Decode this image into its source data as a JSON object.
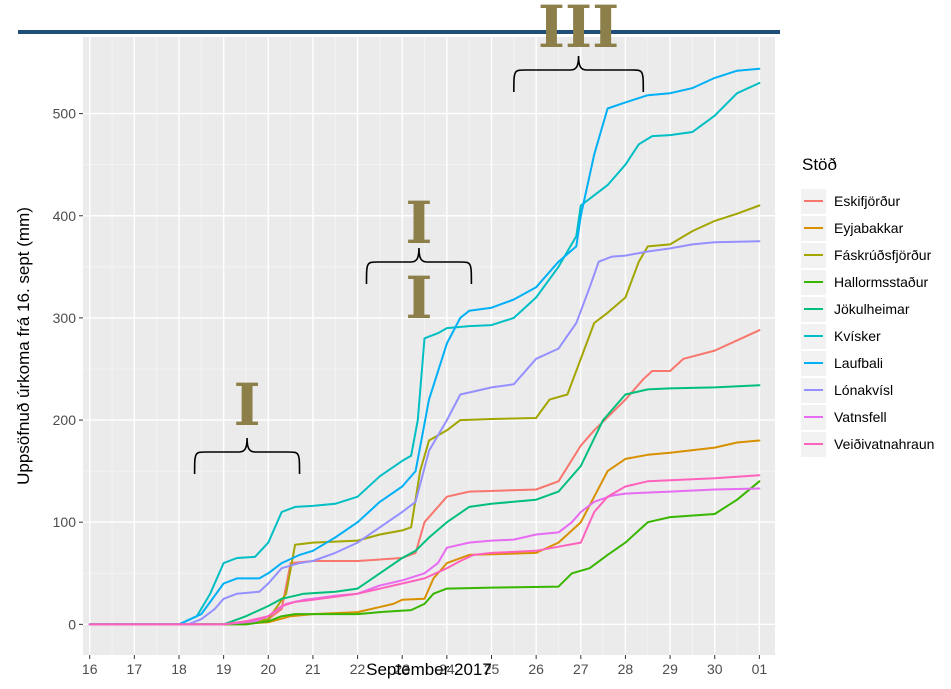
{
  "chart_data": {
    "type": "line",
    "xlabel": "September 2017",
    "ylabel": "Uppsöfnuð úrkoma frá 16. sept (mm)",
    "x_ticks": [
      "16",
      "17",
      "18",
      "19",
      "20",
      "21",
      "22",
      "23",
      "24",
      "25",
      "26",
      "27",
      "28",
      "29",
      "30",
      "01"
    ],
    "xlim": [
      15.85,
      31.35
    ],
    "ylim": [
      -30,
      575
    ],
    "y_ticks": [
      0,
      100,
      200,
      300,
      400,
      500
    ],
    "grid": true,
    "legend": {
      "title": "Stöð",
      "position": "right"
    },
    "annotations": {
      "brackets": [
        {
          "label": "I",
          "x_start": 18.35,
          "x_end": 20.7
        },
        {
          "label": "I\nI",
          "x_start": 22.2,
          "x_end": 24.55
        },
        {
          "label": "III",
          "x_start": 25.5,
          "x_end": 28.4
        }
      ]
    },
    "series": [
      {
        "name": "Eskifjörður",
        "color": "#F8766D",
        "points": [
          [
            16,
            0
          ],
          [
            18,
            0
          ],
          [
            19,
            0
          ],
          [
            19.5,
            2
          ],
          [
            20,
            5
          ],
          [
            20.3,
            15
          ],
          [
            20.5,
            60
          ],
          [
            21,
            62
          ],
          [
            22,
            62
          ],
          [
            23,
            65
          ],
          [
            23.3,
            70
          ],
          [
            23.5,
            100
          ],
          [
            24,
            125
          ],
          [
            24.5,
            130
          ],
          [
            26,
            132
          ],
          [
            26.5,
            140
          ],
          [
            27,
            175
          ],
          [
            27.3,
            190
          ],
          [
            28,
            220
          ],
          [
            28.4,
            240
          ],
          [
            28.6,
            248
          ],
          [
            29,
            248
          ],
          [
            29.3,
            260
          ],
          [
            30,
            268
          ],
          [
            30.7,
            282
          ],
          [
            31,
            288
          ]
        ]
      },
      {
        "name": "Eyjabakkar",
        "color": "#D89000",
        "points": [
          [
            16,
            0
          ],
          [
            19,
            0
          ],
          [
            20,
            2
          ],
          [
            20.5,
            8
          ],
          [
            21,
            10
          ],
          [
            22,
            12
          ],
          [
            22.8,
            20
          ],
          [
            23,
            24
          ],
          [
            23.5,
            25
          ],
          [
            23.7,
            45
          ],
          [
            24,
            60
          ],
          [
            24.5,
            68
          ],
          [
            26,
            70
          ],
          [
            26.5,
            80
          ],
          [
            27,
            100
          ],
          [
            27.3,
            125
          ],
          [
            27.6,
            150
          ],
          [
            28,
            162
          ],
          [
            28.5,
            166
          ],
          [
            29,
            168
          ],
          [
            30,
            173
          ],
          [
            30.5,
            178
          ],
          [
            31,
            180
          ]
        ]
      },
      {
        "name": "Fáskrúðsfjörður",
        "color": "#A3A500",
        "points": [
          [
            16,
            0
          ],
          [
            19,
            0
          ],
          [
            20,
            5
          ],
          [
            20.4,
            30
          ],
          [
            20.6,
            78
          ],
          [
            21,
            80
          ],
          [
            22,
            82
          ],
          [
            22.5,
            88
          ],
          [
            23,
            92
          ],
          [
            23.2,
            95
          ],
          [
            23.4,
            150
          ],
          [
            23.6,
            180
          ],
          [
            24,
            190
          ],
          [
            24.3,
            200
          ],
          [
            25,
            201
          ],
          [
            26,
            202
          ],
          [
            26.3,
            220
          ],
          [
            26.7,
            225
          ],
          [
            27,
            260
          ],
          [
            27.3,
            295
          ],
          [
            27.6,
            305
          ],
          [
            28,
            320
          ],
          [
            28.3,
            355
          ],
          [
            28.5,
            370
          ],
          [
            29,
            372
          ],
          [
            29.5,
            385
          ],
          [
            30,
            395
          ],
          [
            30.5,
            402
          ],
          [
            31,
            410
          ]
        ]
      },
      {
        "name": "Hallormsstaður",
        "color": "#39B600",
        "points": [
          [
            16,
            0
          ],
          [
            19.5,
            0
          ],
          [
            20,
            3
          ],
          [
            20.3,
            8
          ],
          [
            20.6,
            10
          ],
          [
            21,
            10
          ],
          [
            22,
            10
          ],
          [
            22.5,
            12
          ],
          [
            23.2,
            14
          ],
          [
            23.5,
            20
          ],
          [
            23.7,
            30
          ],
          [
            24,
            35
          ],
          [
            25,
            36
          ],
          [
            26.5,
            37
          ],
          [
            26.8,
            50
          ],
          [
            27.2,
            55
          ],
          [
            27.6,
            68
          ],
          [
            28,
            80
          ],
          [
            28.5,
            100
          ],
          [
            29,
            105
          ],
          [
            30,
            108
          ],
          [
            30.5,
            122
          ],
          [
            31,
            140
          ]
        ]
      },
      {
        "name": "Jökulheimar",
        "color": "#00BF7D",
        "points": [
          [
            16,
            0
          ],
          [
            19,
            0
          ],
          [
            19.5,
            8
          ],
          [
            20,
            18
          ],
          [
            20.3,
            25
          ],
          [
            20.8,
            30
          ],
          [
            21.5,
            32
          ],
          [
            22,
            35
          ],
          [
            22.5,
            50
          ],
          [
            23,
            65
          ],
          [
            23.3,
            72
          ],
          [
            23.6,
            85
          ],
          [
            24,
            100
          ],
          [
            24.5,
            115
          ],
          [
            25,
            118
          ],
          [
            26,
            122
          ],
          [
            26.5,
            130
          ],
          [
            27,
            155
          ],
          [
            27.5,
            200
          ],
          [
            28,
            225
          ],
          [
            28.5,
            230
          ],
          [
            29,
            231
          ],
          [
            30,
            232
          ],
          [
            31,
            234
          ]
        ]
      },
      {
        "name": "Kvísker",
        "color": "#00BFC4",
        "points": [
          [
            16,
            0
          ],
          [
            18,
            0
          ],
          [
            18.4,
            8
          ],
          [
            18.7,
            30
          ],
          [
            19,
            60
          ],
          [
            19.3,
            65
          ],
          [
            19.7,
            66
          ],
          [
            20,
            80
          ],
          [
            20.3,
            110
          ],
          [
            20.6,
            115
          ],
          [
            21,
            116
          ],
          [
            21.5,
            118
          ],
          [
            22,
            125
          ],
          [
            22.5,
            145
          ],
          [
            23,
            160
          ],
          [
            23.2,
            165
          ],
          [
            23.35,
            200
          ],
          [
            23.5,
            280
          ],
          [
            23.8,
            285
          ],
          [
            24,
            290
          ],
          [
            24.5,
            292
          ],
          [
            25,
            293
          ],
          [
            25.5,
            300
          ],
          [
            26,
            320
          ],
          [
            26.5,
            350
          ],
          [
            26.9,
            380
          ],
          [
            27,
            410
          ],
          [
            27.3,
            420
          ],
          [
            27.6,
            430
          ],
          [
            28,
            450
          ],
          [
            28.3,
            470
          ],
          [
            28.6,
            478
          ],
          [
            29,
            479
          ],
          [
            29.5,
            482
          ],
          [
            30,
            498
          ],
          [
            30.5,
            520
          ],
          [
            31,
            530
          ]
        ]
      },
      {
        "name": "Laufbali",
        "color": "#00B0F6",
        "points": [
          [
            16,
            0
          ],
          [
            18,
            0
          ],
          [
            18.5,
            10
          ],
          [
            19,
            40
          ],
          [
            19.3,
            45
          ],
          [
            19.8,
            45
          ],
          [
            20,
            50
          ],
          [
            20.3,
            60
          ],
          [
            20.7,
            68
          ],
          [
            21,
            72
          ],
          [
            21.5,
            85
          ],
          [
            22,
            100
          ],
          [
            22.5,
            120
          ],
          [
            23,
            135
          ],
          [
            23.3,
            150
          ],
          [
            23.6,
            220
          ],
          [
            24,
            275
          ],
          [
            24.3,
            300
          ],
          [
            24.5,
            307
          ],
          [
            25,
            310
          ],
          [
            25.5,
            318
          ],
          [
            26,
            330
          ],
          [
            26.5,
            355
          ],
          [
            26.9,
            370
          ],
          [
            27,
            400
          ],
          [
            27.3,
            460
          ],
          [
            27.6,
            505
          ],
          [
            28,
            511
          ],
          [
            28.5,
            518
          ],
          [
            29,
            520
          ],
          [
            29.5,
            525
          ],
          [
            30,
            535
          ],
          [
            30.5,
            542
          ],
          [
            31,
            544
          ]
        ]
      },
      {
        "name": "Lónakvísl",
        "color": "#9590FF",
        "points": [
          [
            16,
            0
          ],
          [
            18.2,
            0
          ],
          [
            18.5,
            5
          ],
          [
            18.8,
            15
          ],
          [
            19,
            25
          ],
          [
            19.3,
            30
          ],
          [
            19.8,
            32
          ],
          [
            20,
            40
          ],
          [
            20.3,
            55
          ],
          [
            20.7,
            60
          ],
          [
            21,
            62
          ],
          [
            21.5,
            70
          ],
          [
            22,
            80
          ],
          [
            22.5,
            95
          ],
          [
            23,
            110
          ],
          [
            23.3,
            120
          ],
          [
            23.6,
            170
          ],
          [
            24,
            200
          ],
          [
            24.3,
            225
          ],
          [
            24.6,
            228
          ],
          [
            25,
            232
          ],
          [
            25.5,
            235
          ],
          [
            26,
            260
          ],
          [
            26.5,
            270
          ],
          [
            26.9,
            295
          ],
          [
            27.2,
            330
          ],
          [
            27.4,
            355
          ],
          [
            27.7,
            360
          ],
          [
            28,
            361
          ],
          [
            28.5,
            365
          ],
          [
            29,
            368
          ],
          [
            29.5,
            372
          ],
          [
            30,
            374
          ],
          [
            31,
            375
          ]
        ]
      },
      {
        "name": "Vatnsfell",
        "color": "#E76BF3",
        "points": [
          [
            16,
            0
          ],
          [
            19,
            0
          ],
          [
            19.7,
            3
          ],
          [
            20,
            8
          ],
          [
            20.4,
            20
          ],
          [
            20.8,
            24
          ],
          [
            21,
            25
          ],
          [
            21.5,
            28
          ],
          [
            22,
            30
          ],
          [
            22.5,
            38
          ],
          [
            23,
            43
          ],
          [
            23.5,
            50
          ],
          [
            23.8,
            60
          ],
          [
            24,
            75
          ],
          [
            24.5,
            80
          ],
          [
            25,
            82
          ],
          [
            25.5,
            83
          ],
          [
            26,
            88
          ],
          [
            26.5,
            90
          ],
          [
            26.8,
            100
          ],
          [
            27,
            110
          ],
          [
            27.3,
            120
          ],
          [
            27.7,
            126
          ],
          [
            28,
            128
          ],
          [
            29,
            130
          ],
          [
            30,
            132
          ],
          [
            31,
            133
          ]
        ]
      },
      {
        "name": "Veiðivatnahraun",
        "color": "#FF62BC",
        "points": [
          [
            16,
            0
          ],
          [
            19,
            0
          ],
          [
            19.5,
            3
          ],
          [
            20,
            8
          ],
          [
            20.3,
            18
          ],
          [
            20.6,
            22
          ],
          [
            21,
            24
          ],
          [
            21.5,
            27
          ],
          [
            22,
            30
          ],
          [
            22.5,
            35
          ],
          [
            23,
            40
          ],
          [
            23.5,
            45
          ],
          [
            24,
            55
          ],
          [
            24.3,
            62
          ],
          [
            24.6,
            68
          ],
          [
            25,
            70
          ],
          [
            26,
            72
          ],
          [
            26.5,
            76
          ],
          [
            27,
            80
          ],
          [
            27.3,
            110
          ],
          [
            27.6,
            125
          ],
          [
            28,
            135
          ],
          [
            28.5,
            140
          ],
          [
            29,
            141
          ],
          [
            30,
            143
          ],
          [
            31,
            146
          ]
        ]
      }
    ]
  }
}
